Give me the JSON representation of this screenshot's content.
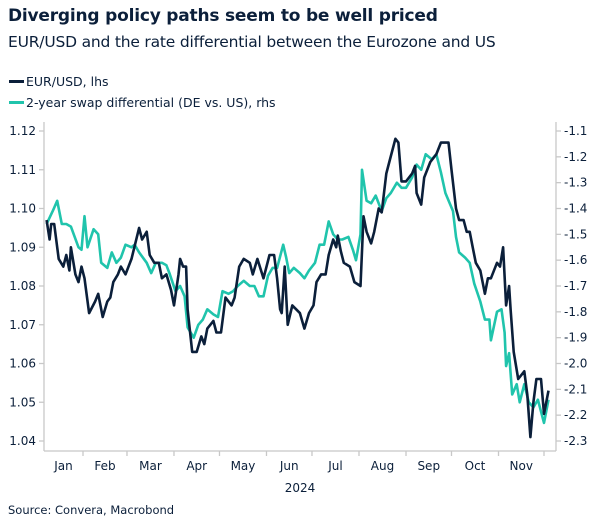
{
  "chart_data": {
    "type": "line",
    "title": "Diverging policy paths seem to be well priced",
    "subtitle": "EUR/USD and the rate differential between the Eurozone and US",
    "source": "Source: Convera, Macrobond",
    "xlabel": "2024",
    "x_tick_labels": [
      "Jan",
      "Feb",
      "Mar",
      "Apr",
      "May",
      "Jun",
      "Jul",
      "Aug",
      "Sep",
      "Oct",
      "Nov"
    ],
    "xlim": [
      "2024-01-01",
      "2024-12-06"
    ],
    "y_left": {
      "ylim": [
        1.04,
        1.12
      ],
      "ticks": [
        "1.12",
        "1.11",
        "1.10",
        "1.09",
        "1.08",
        "1.07",
        "1.06",
        "1.05",
        "1.04"
      ]
    },
    "y_right": {
      "ylim": [
        -2.3,
        -1.1
      ],
      "ticks": [
        "-1.1",
        "-1.2",
        "-1.3",
        "-1.4",
        "-1.5",
        "-1.6",
        "-1.7",
        "-1.8",
        "-1.9",
        "-2.0",
        "-2.1",
        "-2.2",
        "-2.3"
      ]
    },
    "grid": false,
    "legend_position": "top-left",
    "series": [
      {
        "name": "EUR/USD, lhs",
        "axis": "left",
        "color": "#0b1f3a",
        "points": [
          [
            "2024-01-08",
            1.097
          ],
          [
            "2024-01-10",
            1.092
          ],
          [
            "2024-01-11",
            1.096
          ],
          [
            "2024-01-13",
            1.096
          ],
          [
            "2024-01-16",
            1.087
          ],
          [
            "2024-01-19",
            1.085
          ],
          [
            "2024-01-21",
            1.088
          ],
          [
            "2024-01-23",
            1.084
          ],
          [
            "2024-01-24",
            1.09
          ],
          [
            "2024-01-27",
            1.083
          ],
          [
            "2024-01-29",
            1.081
          ],
          [
            "2024-01-31",
            1.085
          ],
          [
            "2024-02-02",
            1.082
          ],
          [
            "2024-02-05",
            1.073
          ],
          [
            "2024-02-09",
            1.076
          ],
          [
            "2024-02-11",
            1.078
          ],
          [
            "2024-02-14",
            1.072
          ],
          [
            "2024-02-17",
            1.076
          ],
          [
            "2024-02-19",
            1.077
          ],
          [
            "2024-02-21",
            1.081
          ],
          [
            "2024-02-24",
            1.083
          ],
          [
            "2024-02-26",
            1.085
          ],
          [
            "2024-02-29",
            1.083
          ],
          [
            "2024-03-04",
            1.087
          ],
          [
            "2024-03-09",
            1.095
          ],
          [
            "2024-03-11",
            1.092
          ],
          [
            "2024-03-14",
            1.094
          ],
          [
            "2024-03-16",
            1.088
          ],
          [
            "2024-03-19",
            1.086
          ],
          [
            "2024-03-22",
            1.086
          ],
          [
            "2024-03-24",
            1.082
          ],
          [
            "2024-03-27",
            1.083
          ],
          [
            "2024-03-30",
            1.079
          ],
          [
            "2024-04-01",
            1.075
          ],
          [
            "2024-04-04",
            1.083
          ],
          [
            "2024-04-05",
            1.087
          ],
          [
            "2024-04-07",
            1.085
          ],
          [
            "2024-04-09",
            1.085
          ],
          [
            "2024-04-10",
            1.074
          ],
          [
            "2024-04-13",
            1.063
          ],
          [
            "2024-04-16",
            1.063
          ],
          [
            "2024-04-19",
            1.067
          ],
          [
            "2024-04-21",
            1.065
          ],
          [
            "2024-04-23",
            1.069
          ],
          [
            "2024-04-27",
            1.071
          ],
          [
            "2024-04-29",
            1.068
          ],
          [
            "2024-05-02",
            1.068
          ],
          [
            "2024-05-05",
            1.077
          ],
          [
            "2024-05-09",
            1.075
          ],
          [
            "2024-05-11",
            1.077
          ],
          [
            "2024-05-14",
            1.085
          ],
          [
            "2024-05-17",
            1.087
          ],
          [
            "2024-05-21",
            1.086
          ],
          [
            "2024-05-23",
            1.083
          ],
          [
            "2024-05-26",
            1.087
          ],
          [
            "2024-05-30",
            1.082
          ],
          [
            "2024-06-03",
            1.088
          ],
          [
            "2024-06-06",
            1.088
          ],
          [
            "2024-06-08",
            1.082
          ],
          [
            "2024-06-10",
            1.074
          ],
          [
            "2024-06-11",
            1.073
          ],
          [
            "2024-06-13",
            1.085
          ],
          [
            "2024-06-15",
            1.07
          ],
          [
            "2024-06-18",
            1.075
          ],
          [
            "2024-06-23",
            1.073
          ],
          [
            "2024-06-26",
            1.069
          ],
          [
            "2024-06-29",
            1.073
          ],
          [
            "2024-07-02",
            1.075
          ],
          [
            "2024-07-04",
            1.081
          ],
          [
            "2024-07-07",
            1.083
          ],
          [
            "2024-07-10",
            1.083
          ],
          [
            "2024-07-12",
            1.088
          ],
          [
            "2024-07-15",
            1.092
          ],
          [
            "2024-07-17",
            1.09
          ],
          [
            "2024-07-18",
            1.093
          ],
          [
            "2024-07-20",
            1.089
          ],
          [
            "2024-07-22",
            1.086
          ],
          [
            "2024-07-26",
            1.085
          ],
          [
            "2024-07-29",
            1.081
          ],
          [
            "2024-08-02",
            1.08
          ],
          [
            "2024-08-04",
            1.098
          ],
          [
            "2024-08-06",
            1.094
          ],
          [
            "2024-08-09",
            1.091
          ],
          [
            "2024-08-11",
            1.094
          ],
          [
            "2024-08-14",
            1.1
          ],
          [
            "2024-08-16",
            1.099
          ],
          [
            "2024-08-19",
            1.109
          ],
          [
            "2024-08-21",
            1.112
          ],
          [
            "2024-08-25",
            1.118
          ],
          [
            "2024-08-27",
            1.117
          ],
          [
            "2024-08-29",
            1.107
          ],
          [
            "2024-09-01",
            1.107
          ],
          [
            "2024-09-05",
            1.109
          ],
          [
            "2024-09-07",
            1.111
          ],
          [
            "2024-09-08",
            1.104
          ],
          [
            "2024-09-11",
            1.101
          ],
          [
            "2024-09-13",
            1.108
          ],
          [
            "2024-09-17",
            1.112
          ],
          [
            "2024-09-21",
            1.114
          ],
          [
            "2024-09-24",
            1.117
          ],
          [
            "2024-09-29",
            1.117
          ],
          [
            "2024-10-01",
            1.11
          ],
          [
            "2024-10-04",
            1.1
          ],
          [
            "2024-10-06",
            1.097
          ],
          [
            "2024-10-09",
            1.097
          ],
          [
            "2024-10-11",
            1.094
          ],
          [
            "2024-10-13",
            1.094
          ],
          [
            "2024-10-15",
            1.09
          ],
          [
            "2024-10-17",
            1.086
          ],
          [
            "2024-10-20",
            1.084
          ],
          [
            "2024-10-23",
            1.078
          ],
          [
            "2024-10-25",
            1.082
          ],
          [
            "2024-10-27",
            1.082
          ],
          [
            "2024-10-31",
            1.086
          ],
          [
            "2024-11-02",
            1.085
          ],
          [
            "2024-11-04",
            1.09
          ],
          [
            "2024-11-06",
            1.075
          ],
          [
            "2024-11-08",
            1.08
          ],
          [
            "2024-11-09",
            1.074
          ],
          [
            "2024-11-11",
            1.063
          ],
          [
            "2024-11-14",
            1.056
          ],
          [
            "2024-11-18",
            1.058
          ],
          [
            "2024-11-20",
            1.052
          ],
          [
            "2024-11-22",
            1.041
          ],
          [
            "2024-11-24",
            1.05
          ],
          [
            "2024-11-26",
            1.056
          ],
          [
            "2024-11-29",
            1.056
          ],
          [
            "2024-12-01",
            1.047
          ],
          [
            "2024-12-04",
            1.053
          ]
        ]
      },
      {
        "name": "2-year swap differential (DE vs. US), rhs",
        "axis": "right",
        "color": "#20c4ac",
        "points": [
          [
            "2024-01-08",
            -1.46
          ],
          [
            "2024-01-12",
            -1.41
          ],
          [
            "2024-01-15",
            -1.37
          ],
          [
            "2024-01-18",
            -1.46
          ],
          [
            "2024-01-21",
            -1.46
          ],
          [
            "2024-01-24",
            -1.47
          ],
          [
            "2024-01-29",
            -1.55
          ],
          [
            "2024-01-31",
            -1.56
          ],
          [
            "2024-02-02",
            -1.43
          ],
          [
            "2024-02-04",
            -1.55
          ],
          [
            "2024-02-08",
            -1.48
          ],
          [
            "2024-02-11",
            -1.5
          ],
          [
            "2024-02-13",
            -1.61
          ],
          [
            "2024-02-17",
            -1.63
          ],
          [
            "2024-02-20",
            -1.57
          ],
          [
            "2024-02-23",
            -1.61
          ],
          [
            "2024-02-26",
            -1.59
          ],
          [
            "2024-02-29",
            -1.54
          ],
          [
            "2024-03-04",
            -1.55
          ],
          [
            "2024-03-06",
            -1.54
          ],
          [
            "2024-03-09",
            -1.57
          ],
          [
            "2024-03-14",
            -1.61
          ],
          [
            "2024-03-17",
            -1.65
          ],
          [
            "2024-03-20",
            -1.61
          ],
          [
            "2024-03-24",
            -1.61
          ],
          [
            "2024-03-27",
            -1.62
          ],
          [
            "2024-03-29",
            -1.65
          ],
          [
            "2024-04-02",
            -1.72
          ],
          [
            "2024-04-05",
            -1.7
          ],
          [
            "2024-04-08",
            -1.74
          ],
          [
            "2024-04-10",
            -1.86
          ],
          [
            "2024-04-14",
            -1.9
          ],
          [
            "2024-04-17",
            -1.85
          ],
          [
            "2024-04-20",
            -1.83
          ],
          [
            "2024-04-23",
            -1.79
          ],
          [
            "2024-04-27",
            -1.81
          ],
          [
            "2024-04-30",
            -1.82
          ],
          [
            "2024-05-03",
            -1.72
          ],
          [
            "2024-05-07",
            -1.73
          ],
          [
            "2024-05-10",
            -1.72
          ],
          [
            "2024-05-13",
            -1.7
          ],
          [
            "2024-05-17",
            -1.68
          ],
          [
            "2024-05-21",
            -1.7
          ],
          [
            "2024-05-24",
            -1.7
          ],
          [
            "2024-05-27",
            -1.74
          ],
          [
            "2024-05-30",
            -1.74
          ],
          [
            "2024-06-02",
            -1.66
          ],
          [
            "2024-06-05",
            -1.63
          ],
          [
            "2024-06-08",
            -1.63
          ],
          [
            "2024-06-12",
            -1.54
          ],
          [
            "2024-06-14",
            -1.59
          ],
          [
            "2024-06-16",
            -1.65
          ],
          [
            "2024-06-19",
            -1.63
          ],
          [
            "2024-06-23",
            -1.65
          ],
          [
            "2024-06-26",
            -1.67
          ],
          [
            "2024-06-29",
            -1.64
          ],
          [
            "2024-07-03",
            -1.61
          ],
          [
            "2024-07-06",
            -1.54
          ],
          [
            "2024-07-09",
            -1.54
          ],
          [
            "2024-07-12",
            -1.45
          ],
          [
            "2024-07-15",
            -1.5
          ],
          [
            "2024-07-18",
            -1.52
          ],
          [
            "2024-07-21",
            -1.52
          ],
          [
            "2024-07-25",
            -1.51
          ],
          [
            "2024-07-28",
            -1.56
          ],
          [
            "2024-07-30",
            -1.6
          ],
          [
            "2024-08-02",
            -1.5
          ],
          [
            "2024-08-03",
            -1.25
          ],
          [
            "2024-08-06",
            -1.37
          ],
          [
            "2024-08-09",
            -1.38
          ],
          [
            "2024-08-12",
            -1.35
          ],
          [
            "2024-08-16",
            -1.41
          ],
          [
            "2024-08-19",
            -1.36
          ],
          [
            "2024-08-22",
            -1.34
          ],
          [
            "2024-08-26",
            -1.3
          ],
          [
            "2024-08-29",
            -1.32
          ],
          [
            "2024-09-01",
            -1.32
          ],
          [
            "2024-09-05",
            -1.28
          ],
          [
            "2024-09-08",
            -1.23
          ],
          [
            "2024-09-11",
            -1.25
          ],
          [
            "2024-09-14",
            -1.19
          ],
          [
            "2024-09-18",
            -1.21
          ],
          [
            "2024-09-21",
            -1.19
          ],
          [
            "2024-09-24",
            -1.26
          ],
          [
            "2024-09-27",
            -1.34
          ],
          [
            "2024-10-02",
            -1.41
          ],
          [
            "2024-10-04",
            -1.51
          ],
          [
            "2024-10-06",
            -1.57
          ],
          [
            "2024-10-10",
            -1.59
          ],
          [
            "2024-10-13",
            -1.61
          ],
          [
            "2024-10-16",
            -1.69
          ],
          [
            "2024-10-20",
            -1.76
          ],
          [
            "2024-10-23",
            -1.83
          ],
          [
            "2024-10-26",
            -1.83
          ],
          [
            "2024-10-27",
            -1.91
          ],
          [
            "2024-10-31",
            -1.8
          ],
          [
            "2024-11-03",
            -1.79
          ],
          [
            "2024-11-05",
            -1.88
          ],
          [
            "2024-11-06",
            -2.01
          ],
          [
            "2024-11-08",
            -1.96
          ],
          [
            "2024-11-10",
            -2.12
          ],
          [
            "2024-11-13",
            -2.08
          ],
          [
            "2024-11-15",
            -2.15
          ],
          [
            "2024-11-18",
            -2.08
          ],
          [
            "2024-11-21",
            -2.15
          ],
          [
            "2024-11-24",
            -2.17
          ],
          [
            "2024-11-27",
            -2.14
          ],
          [
            "2024-12-01",
            -2.23
          ],
          [
            "2024-12-04",
            -2.14
          ]
        ]
      }
    ]
  }
}
